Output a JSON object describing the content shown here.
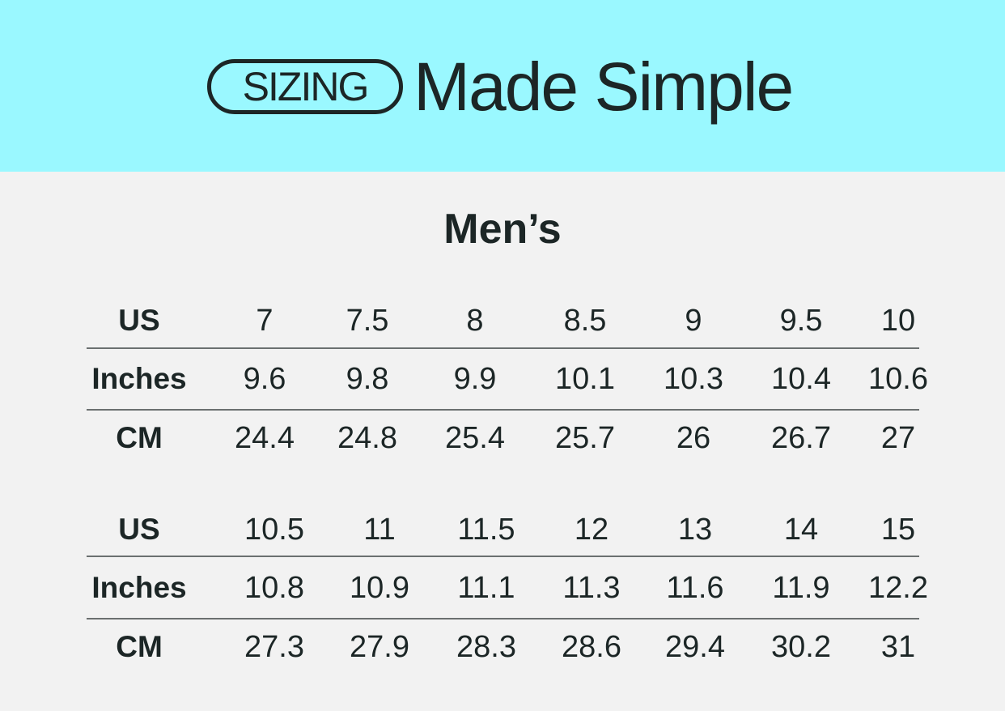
{
  "header": {
    "badge": "SIZING",
    "headline": "Made Simple",
    "background": "#9af8ff"
  },
  "title": "Men’s",
  "tables": [
    {
      "rows": [
        {
          "label": "US",
          "values": [
            "7",
            "7.5",
            "8",
            "8.5",
            "9",
            "9.5",
            "10"
          ]
        },
        {
          "label": "Inches",
          "values": [
            "9.6",
            "9.8",
            "9.9",
            "10.1",
            "10.3",
            "10.4",
            "10.6"
          ]
        },
        {
          "label": "CM",
          "values": [
            "24.4",
            "24.8",
            "25.4",
            "25.7",
            "26",
            "26.7",
            "27"
          ]
        }
      ]
    },
    {
      "rows": [
        {
          "label": "US",
          "values": [
            "10.5",
            "11",
            "11.5",
            "12",
            "13",
            "14",
            "15"
          ]
        },
        {
          "label": "Inches",
          "values": [
            "10.8",
            "10.9",
            "11.1",
            "11.3",
            "11.6",
            "11.9",
            "12.2"
          ]
        },
        {
          "label": "CM",
          "values": [
            "27.3",
            "27.9",
            "28.3",
            "28.6",
            "29.4",
            "30.2",
            "31"
          ]
        }
      ]
    }
  ]
}
